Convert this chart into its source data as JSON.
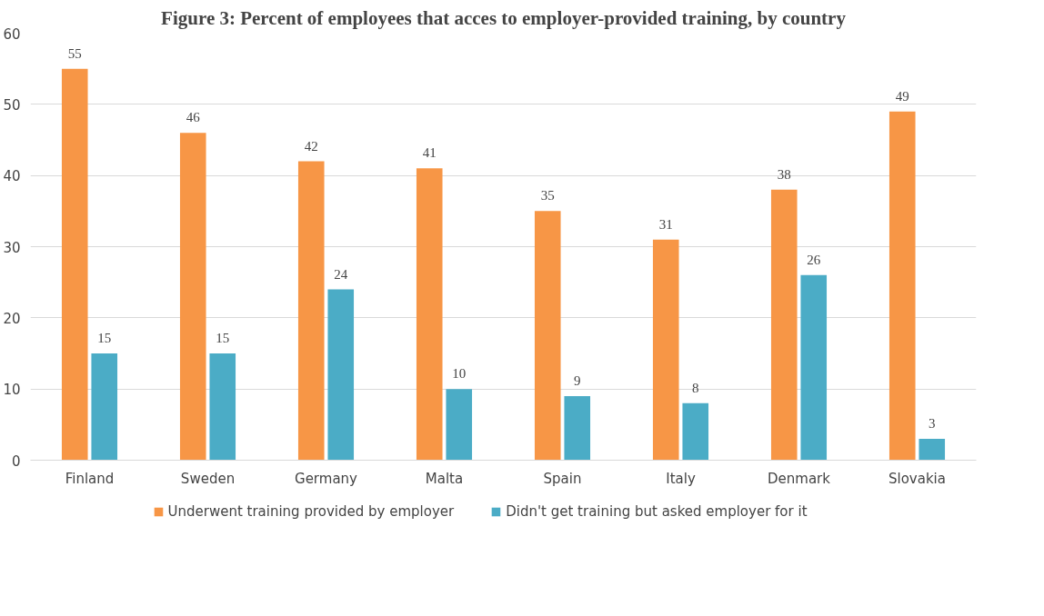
{
  "chart_data": {
    "type": "bar",
    "title": "Figure 3: Percent of employees that acces to employer-provided training, by country",
    "categories": [
      "Finland",
      "Sweden",
      "Germany",
      "Malta",
      "Spain",
      "Italy",
      "Denmark",
      "Slovakia"
    ],
    "series": [
      {
        "name": "Underwent training provided by employer",
        "color": "#f79646",
        "values": [
          55,
          46,
          42,
          41,
          35,
          31,
          38,
          49
        ]
      },
      {
        "name": "Didn't get training but asked employer for it",
        "color": "#4bacc6",
        "values": [
          15,
          15,
          24,
          10,
          9,
          8,
          26,
          3
        ]
      }
    ],
    "ylim": [
      0,
      60
    ],
    "yticks": [
      0,
      10,
      20,
      30,
      40,
      50,
      60
    ],
    "grid": "y",
    "legend": "bottom",
    "data_labels": true
  }
}
